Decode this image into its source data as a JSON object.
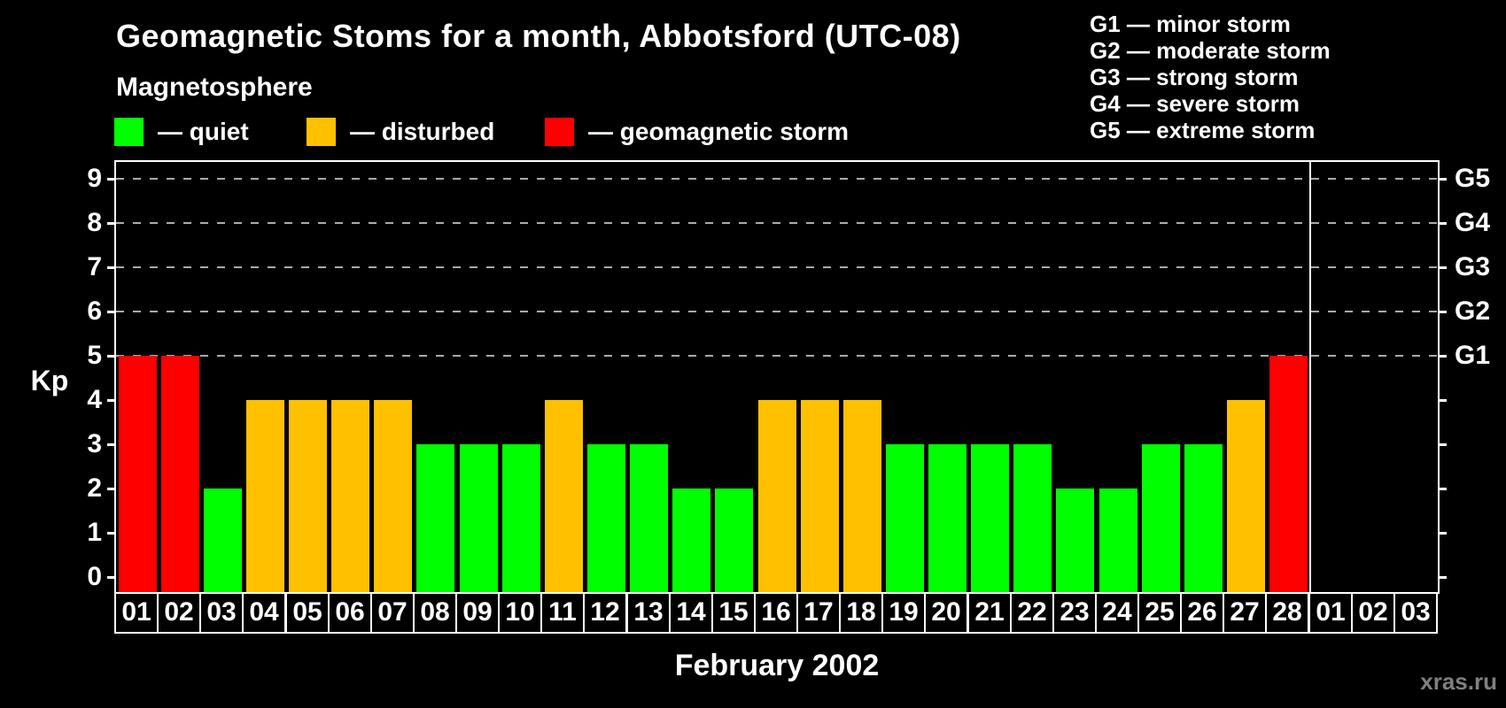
{
  "title": "Geomagnetic Stoms for a month, Abbotsford (UTC-08)",
  "subtitle": "Magnetosphere",
  "legend": [
    {
      "name": "quiet",
      "label": "— quiet",
      "color": "#00ff00"
    },
    {
      "name": "disturbed",
      "label": "— disturbed",
      "color": "#ffc000"
    },
    {
      "name": "storm",
      "label": "— geomagnetic storm",
      "color": "#ff0000"
    }
  ],
  "storm_scale_legend": [
    "G1 — minor storm",
    "G2 — moderate storm",
    "G3 — strong storm",
    "G4 — severe storm",
    "G5 — extreme storm"
  ],
  "watermark": "xras.ru",
  "chart_data": {
    "type": "bar",
    "title": "Geomagnetic Stoms for a month, Abbotsford (UTC-08)",
    "xlabel": "February 2002",
    "ylabel": "Kp",
    "ylim": [
      0,
      9
    ],
    "yticks": [
      0,
      1,
      2,
      3,
      4,
      5,
      6,
      7,
      8,
      9
    ],
    "gridlines_at": [
      5,
      6,
      7,
      8,
      9
    ],
    "grid_color": "#aaaaaa",
    "right_axis_labels": {
      "5": "G1",
      "6": "G2",
      "7": "G3",
      "8": "G4",
      "9": "G5"
    },
    "legend_position": "top-left",
    "categories": [
      "01",
      "02",
      "03",
      "04",
      "05",
      "06",
      "07",
      "08",
      "09",
      "10",
      "11",
      "12",
      "13",
      "14",
      "15",
      "16",
      "17",
      "18",
      "19",
      "20",
      "21",
      "22",
      "23",
      "24",
      "25",
      "26",
      "27",
      "28",
      "01",
      "02",
      "03"
    ],
    "values": [
      5,
      5,
      2,
      4,
      4,
      4,
      4,
      3,
      3,
      3,
      4,
      3,
      3,
      2,
      2,
      4,
      4,
      4,
      3,
      3,
      3,
      3,
      2,
      2,
      3,
      3,
      4,
      5,
      null,
      null,
      null
    ],
    "statuses": [
      "storm",
      "storm",
      "quiet",
      "disturbed",
      "disturbed",
      "disturbed",
      "disturbed",
      "quiet",
      "quiet",
      "quiet",
      "disturbed",
      "quiet",
      "quiet",
      "quiet",
      "quiet",
      "disturbed",
      "disturbed",
      "disturbed",
      "quiet",
      "quiet",
      "quiet",
      "quiet",
      "quiet",
      "quiet",
      "quiet",
      "quiet",
      "disturbed",
      "storm",
      null,
      null,
      null
    ],
    "status_colors": {
      "quiet": "#00ff00",
      "disturbed": "#ffc000",
      "storm": "#ff0000"
    },
    "month_separator_after_category_index": 27
  }
}
